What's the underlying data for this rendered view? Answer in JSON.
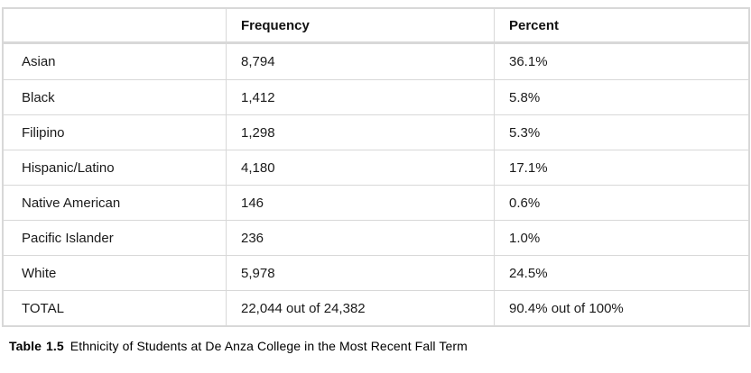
{
  "colors": {
    "border": "#d8d8d8",
    "text": "#1a1a1a",
    "background": "#ffffff"
  },
  "table": {
    "headers": [
      "",
      "Frequency",
      "Percent"
    ],
    "rows": [
      {
        "label": "Asian",
        "frequency": "8,794",
        "percent": "36.1%"
      },
      {
        "label": "Black",
        "frequency": "1,412",
        "percent": "5.8%"
      },
      {
        "label": "Filipino",
        "frequency": "1,298",
        "percent": "5.3%"
      },
      {
        "label": "Hispanic/Latino",
        "frequency": "4,180",
        "percent": "17.1%"
      },
      {
        "label": "Native American",
        "frequency": "146",
        "percent": "0.6%"
      },
      {
        "label": "Pacific Islander",
        "frequency": "236",
        "percent": "1.0%"
      },
      {
        "label": "White",
        "frequency": "5,978",
        "percent": "24.5%"
      },
      {
        "label": "TOTAL",
        "frequency": "22,044 out of 24,382",
        "percent": "90.4% out of 100%"
      }
    ]
  },
  "caption": {
    "word": "Table",
    "number": "1.5",
    "text": "Ethnicity of Students at De Anza College in the Most Recent Fall Term"
  }
}
